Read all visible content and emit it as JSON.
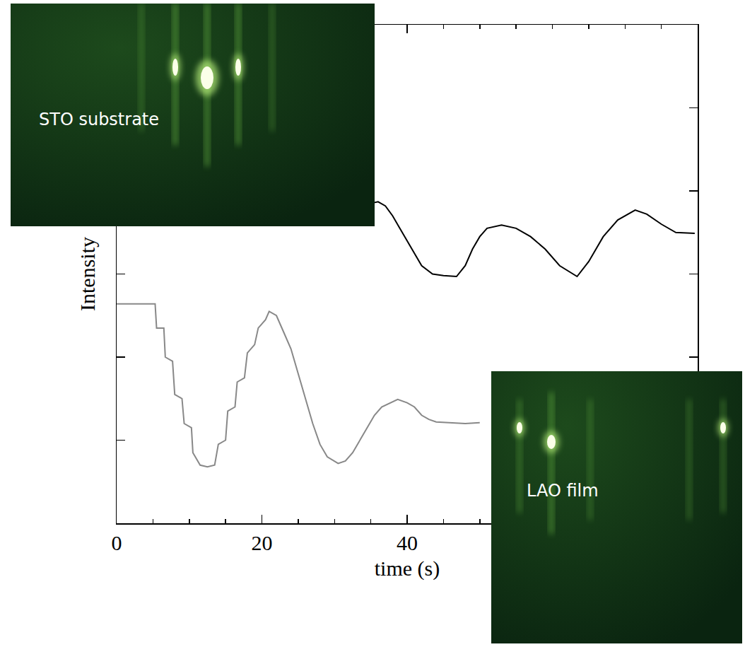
{
  "chart_data": {
    "type": "line",
    "x_label": "time (s)",
    "y_label": "Intensity",
    "xlim": [
      0,
      80
    ],
    "xticks": [
      0,
      20,
      40
    ],
    "ylim": [
      0,
      6
    ],
    "yticks": [
      1,
      2,
      3,
      4,
      5
    ],
    "tick_labels": "x",
    "grid": false,
    "annotations": [
      "STO substrate",
      "LAO film"
    ],
    "series": [
      {
        "color": "#888888",
        "x": [
          0,
          5.3,
          5.5,
          6.5,
          6.7,
          7.7,
          8,
          9,
          9.3,
          10.3,
          10.5,
          11.5,
          12.5,
          13.5,
          14,
          15,
          15.3,
          16.3,
          16.6,
          17.6,
          18,
          19,
          19.5,
          20.5,
          21,
          22,
          23,
          24,
          25,
          26,
          27,
          28,
          29,
          30.5,
          31.5,
          32.5,
          33.5,
          34.5,
          35.5,
          36.5,
          38.7,
          40,
          41,
          42,
          43,
          44,
          46,
          48,
          50
        ],
        "values": [
          2.64,
          2.64,
          2.35,
          2.35,
          2.0,
          1.95,
          1.55,
          1.5,
          1.2,
          1.15,
          0.85,
          0.7,
          0.68,
          0.7,
          0.95,
          1.0,
          1.35,
          1.4,
          1.7,
          1.75,
          2.05,
          2.15,
          2.35,
          2.45,
          2.55,
          2.5,
          2.3,
          2.1,
          1.8,
          1.5,
          1.2,
          0.95,
          0.8,
          0.72,
          0.75,
          0.85,
          1.0,
          1.15,
          1.3,
          1.4,
          1.49,
          1.45,
          1.4,
          1.3,
          1.25,
          1.22,
          1.21,
          1.2,
          1.21
        ]
      },
      {
        "color": "#000000",
        "x": [
          35,
          36,
          37,
          38,
          39,
          40,
          41,
          42,
          43.5,
          45,
          46.8,
          48,
          49,
          50,
          51,
          53,
          55,
          57,
          59,
          61,
          63.4,
          65,
          67,
          69,
          71.4,
          73,
          75,
          77,
          79.6
        ],
        "values": [
          3.85,
          3.87,
          3.82,
          3.7,
          3.55,
          3.4,
          3.25,
          3.1,
          3.0,
          2.98,
          2.97,
          3.1,
          3.3,
          3.45,
          3.55,
          3.59,
          3.55,
          3.45,
          3.3,
          3.1,
          2.97,
          3.15,
          3.45,
          3.65,
          3.77,
          3.72,
          3.6,
          3.5,
          3.49
        ]
      }
    ]
  }
}
